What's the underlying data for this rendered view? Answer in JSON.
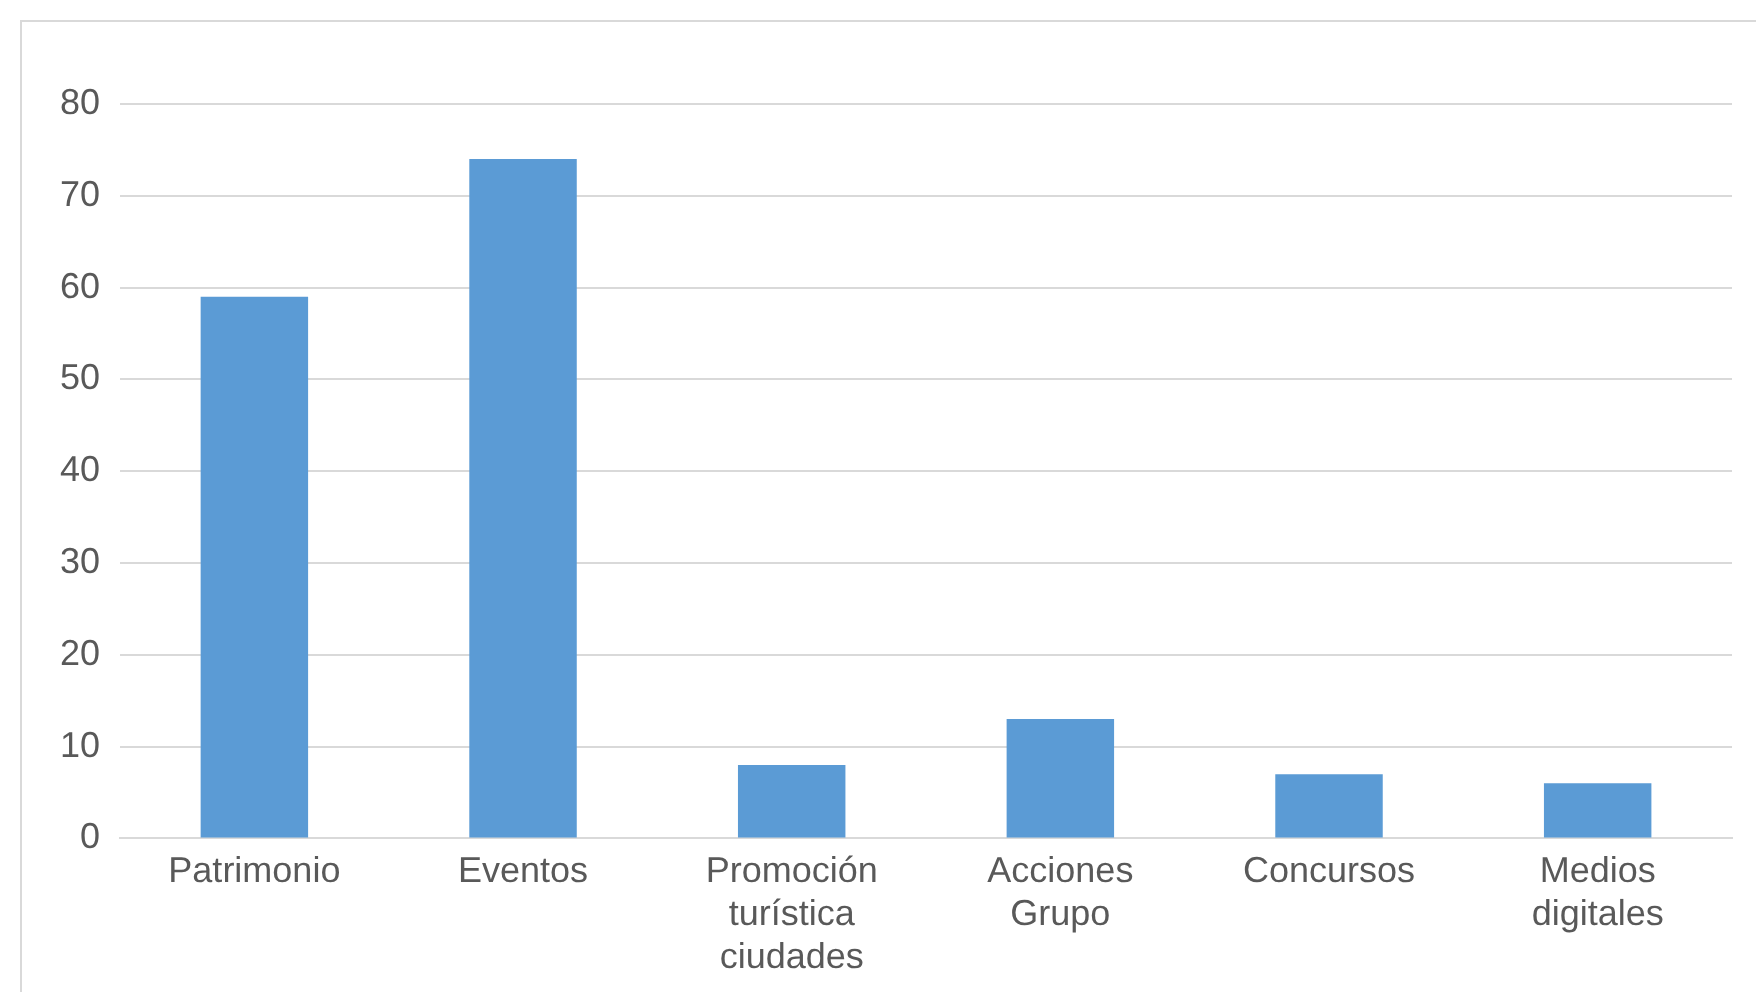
{
  "chart_data": {
    "type": "bar",
    "categories": [
      "Patrimonio",
      "Eventos",
      "Promoción turística ciudades",
      "Acciones Grupo",
      "Concursos",
      "Medios digitales"
    ],
    "values": [
      59,
      74,
      8,
      13,
      7,
      6
    ],
    "color": "#5b9bd5",
    "ylim": [
      0,
      80
    ],
    "yticks": [
      0,
      10,
      20,
      30,
      40,
      50,
      60,
      70,
      80
    ],
    "grid": "y"
  }
}
